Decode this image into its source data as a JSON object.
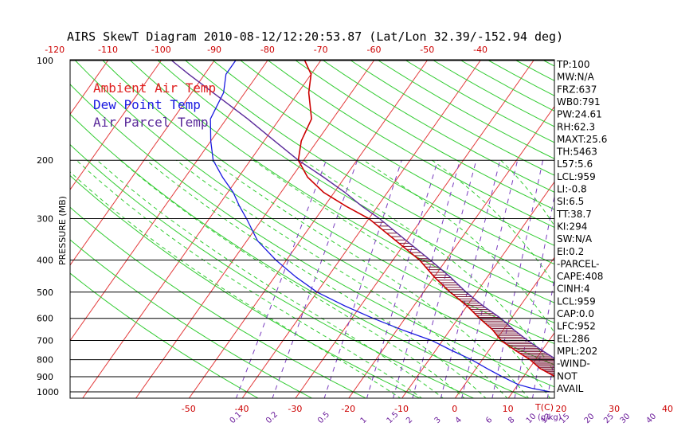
{
  "chart_data": {
    "type": "line",
    "title": "AIRS SkewT Diagram 2010-08-12/12:20:53.87 (Lat/Lon 32.39/-152.94 deg)",
    "ylabel": "PRESSURE (MB)",
    "xlabel_top": "T(C)",
    "mixing_ratio_unit": "(g/kg)",
    "top_temperature_ticks": [
      "-120",
      "-110",
      "-100",
      "-90",
      "-80",
      "-70",
      "-60",
      "-50",
      "-40"
    ],
    "bottom_temperature_ticks": [
      "-50",
      "-40",
      "-30",
      "-20",
      "-10",
      "0",
      "10",
      "20",
      "30",
      "40"
    ],
    "mixing_ratio_ticks": [
      "0.1",
      "0.2",
      "0.5",
      "1",
      "1.5",
      "2",
      "3",
      "4",
      "6",
      "8",
      "10",
      "12",
      "15",
      "20",
      "25",
      "30",
      "40"
    ],
    "pressure_ticks": [
      100,
      200,
      300,
      400,
      500,
      600,
      700,
      800,
      900,
      1000
    ],
    "ylim": [
      100,
      1050
    ],
    "y_scale": "log",
    "legend": [
      {
        "label": "Ambient Air Temp",
        "color": "#e02020"
      },
      {
        "label": "Dew Point Temp",
        "color": "#1a1ae0"
      },
      {
        "label": "Air Parcel Temp",
        "color": "#5a2a9a"
      }
    ],
    "series": [
      {
        "name": "Ambient Air Temp",
        "color": "#cc0000",
        "points": [
          [
            1000,
            24
          ],
          [
            975,
            21
          ],
          [
            950,
            19
          ],
          [
            900,
            16
          ],
          [
            850,
            12
          ],
          [
            800,
            9
          ],
          [
            750,
            5
          ],
          [
            700,
            1
          ],
          [
            650,
            -2
          ],
          [
            600,
            -6
          ],
          [
            550,
            -10
          ],
          [
            500,
            -15
          ],
          [
            450,
            -20
          ],
          [
            400,
            -25
          ],
          [
            350,
            -32
          ],
          [
            300,
            -40
          ],
          [
            275,
            -46
          ],
          [
            250,
            -52
          ],
          [
            225,
            -57
          ],
          [
            200,
            -61
          ],
          [
            175,
            -63
          ],
          [
            150,
            -64
          ],
          [
            125,
            -68
          ],
          [
            110,
            -70
          ],
          [
            100,
            -73
          ]
        ]
      },
      {
        "name": "Dew Point Temp",
        "color": "#1a1ae0",
        "points": [
          [
            1000,
            17
          ],
          [
            975,
            13
          ],
          [
            950,
            10
          ],
          [
            900,
            6
          ],
          [
            850,
            2
          ],
          [
            800,
            -2
          ],
          [
            750,
            -7
          ],
          [
            700,
            -12
          ],
          [
            650,
            -19
          ],
          [
            600,
            -26
          ],
          [
            550,
            -33
          ],
          [
            500,
            -40
          ],
          [
            450,
            -46
          ],
          [
            400,
            -52
          ],
          [
            350,
            -58
          ],
          [
            300,
            -63
          ],
          [
            275,
            -66
          ],
          [
            250,
            -69
          ],
          [
            225,
            -73
          ],
          [
            200,
            -77
          ],
          [
            175,
            -80
          ],
          [
            150,
            -83
          ],
          [
            125,
            -84
          ],
          [
            110,
            -86
          ],
          [
            100,
            -86
          ]
        ]
      },
      {
        "name": "Air Parcel Temp",
        "color": "#5a2a9a",
        "points": [
          [
            1000,
            24
          ],
          [
            959,
            21
          ],
          [
            900,
            20
          ],
          [
            850,
            17
          ],
          [
            800,
            14
          ],
          [
            750,
            10
          ],
          [
            700,
            6
          ],
          [
            650,
            2
          ],
          [
            600,
            -2
          ],
          [
            550,
            -7
          ],
          [
            500,
            -12
          ],
          [
            450,
            -17
          ],
          [
            400,
            -23
          ],
          [
            350,
            -30
          ],
          [
            300,
            -38
          ],
          [
            275,
            -43
          ],
          [
            250,
            -48
          ],
          [
            225,
            -54
          ],
          [
            200,
            -61
          ],
          [
            175,
            -68
          ],
          [
            150,
            -76
          ],
          [
            125,
            -86
          ],
          [
            110,
            -93
          ],
          [
            100,
            -98
          ]
        ]
      }
    ],
    "indices": [
      "TP:100",
      "MW:N/A",
      "FRZ:637",
      "WB0:791",
      "PW:24.61",
      "RH:62.3",
      "MAXT:25.6",
      "TH:5463",
      "L57:5.6",
      "LCL:959",
      "LI:-0.8",
      "SI:6.5",
      "TT:38.7",
      "KI:294",
      "SW:N/A",
      "EI:0.2",
      "-PARCEL-",
      "CAPE:408",
      "CINH:4",
      "LCL:959",
      "CAP:0.0",
      "LFC:952",
      "EL:286",
      "MPL:202",
      "-WIND-",
      "NOT",
      "AVAIL"
    ]
  }
}
